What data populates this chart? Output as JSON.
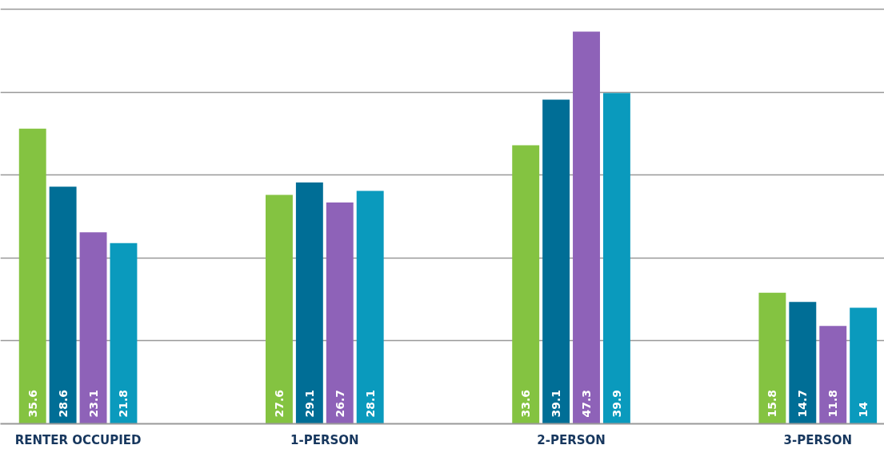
{
  "chart_data": {
    "type": "bar",
    "categories": [
      "RENTER OCCUPIED",
      "1-PERSON",
      "2-PERSON",
      "3-PERSON"
    ],
    "series": [
      {
        "color": "#84c341",
        "values": [
          35.6,
          27.6,
          33.6,
          15.8
        ]
      },
      {
        "color": "#006e96",
        "values": [
          28.6,
          29.1,
          39.1,
          14.7
        ]
      },
      {
        "color": "#8e62b8",
        "values": [
          23.1,
          26.7,
          47.3,
          11.8
        ]
      },
      {
        "color": "#0a9abd",
        "values": [
          21.8,
          28.1,
          39.9,
          14
        ]
      }
    ],
    "yticks": [
      {
        "value": 0,
        "label": null
      },
      {
        "value": 10,
        "label": null
      },
      {
        "value": 20,
        "label": null
      },
      {
        "value": 30,
        "label": null
      },
      {
        "value": 40,
        "label": null
      },
      {
        "value": 50,
        "label": null
      }
    ],
    "tick_labels": "x",
    "grid": "y",
    "data_labels": true
  }
}
